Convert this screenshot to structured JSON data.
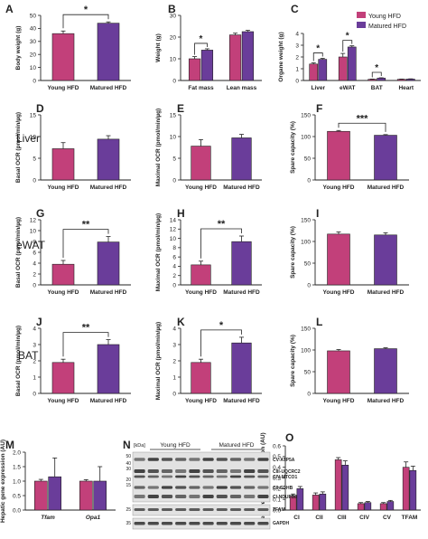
{
  "colors": {
    "young": "#c2407a",
    "matured": "#6a3d9a",
    "axis": "#222222",
    "blot_bg": "#e2e2e2",
    "band": "#3a3a3a"
  },
  "legend": {
    "items": [
      "Young HFD",
      "Matured HFD"
    ]
  },
  "row_labels": {
    "liver": "Liver",
    "ewat": "eWAT",
    "bat": "BAT"
  },
  "chart_data": [
    {
      "id": "A",
      "panel_label": "A",
      "type": "bar",
      "categories": [
        "Young HFD",
        "Matured HFD"
      ],
      "values": [
        36,
        44
      ],
      "errors": [
        2,
        1
      ],
      "ylabel": "Body weight (g)",
      "ylim": [
        0,
        50
      ],
      "yticks": [
        0,
        10,
        20,
        30,
        40,
        50
      ],
      "sig": [
        {
          "from": 0,
          "to": 1,
          "label": "*"
        }
      ]
    },
    {
      "id": "B",
      "panel_label": "B",
      "type": "bar",
      "groups": [
        "Fat mass",
        "Lean mass"
      ],
      "series": [
        {
          "name": "Young HFD",
          "values": [
            10,
            21
          ],
          "errors": [
            1,
            0.8
          ]
        },
        {
          "name": "Matured HFD",
          "values": [
            14,
            22.5
          ],
          "errors": [
            0.6,
            0.6
          ]
        }
      ],
      "ylabel": "Weight (g)",
      "ylim": [
        0,
        30
      ],
      "yticks": [
        0,
        10,
        20,
        30
      ],
      "sig": [
        {
          "group": 0,
          "label": "*"
        }
      ]
    },
    {
      "id": "C",
      "panel_label": "C",
      "type": "bar",
      "groups": [
        "Liver",
        "eWAT",
        "BAT",
        "Heart"
      ],
      "series": [
        {
          "name": "Young HFD",
          "values": [
            1.4,
            2.0,
            0.1,
            0.1
          ],
          "errors": [
            0.1,
            0.3,
            0.02,
            0.02
          ]
        },
        {
          "name": "Matured HFD",
          "values": [
            1.8,
            2.85,
            0.2,
            0.12
          ],
          "errors": [
            0.08,
            0.1,
            0.03,
            0.02
          ]
        }
      ],
      "ylabel": "Organe weight (g)",
      "ylim": [
        0,
        4
      ],
      "yticks": [
        0,
        1,
        2,
        3,
        4
      ],
      "sig": [
        {
          "group": 0,
          "label": "*"
        },
        {
          "group": 1,
          "label": "*"
        },
        {
          "group": 2,
          "label": "*"
        }
      ],
      "legend": "top-right"
    },
    {
      "id": "D",
      "panel_label": "D",
      "type": "bar",
      "categories": [
        "Young HFD",
        "Matured HFD"
      ],
      "values": [
        7.2,
        9.4
      ],
      "errors": [
        1.4,
        0.8
      ],
      "ylabel": "Basal OCR (pmol/min/µg)",
      "ylim": [
        0,
        15
      ],
      "yticks": [
        0,
        5,
        10,
        15
      ],
      "sig": []
    },
    {
      "id": "E",
      "panel_label": "E",
      "type": "bar",
      "categories": [
        "Young HFD",
        "Matured HFD"
      ],
      "values": [
        7.8,
        9.7
      ],
      "errors": [
        1.5,
        0.8
      ],
      "ylabel": "Maximal OCR (pmol/min/µg)",
      "ylim": [
        0,
        15
      ],
      "yticks": [
        0,
        5,
        10,
        15
      ],
      "sig": []
    },
    {
      "id": "F",
      "panel_label": "F",
      "type": "bar",
      "categories": [
        "Young HFD",
        "Matured HFD"
      ],
      "values": [
        112,
        103
      ],
      "errors": [
        2,
        1.5
      ],
      "ylabel": "Spare capacity (%)",
      "ylim": [
        0,
        150
      ],
      "yticks": [
        0,
        50,
        100,
        150
      ],
      "sig": [
        {
          "from": 0,
          "to": 1,
          "label": "***"
        }
      ]
    },
    {
      "id": "G",
      "panel_label": "G",
      "type": "bar",
      "categories": [
        "Young HFD",
        "Matured HFD"
      ],
      "values": [
        3.8,
        7.9
      ],
      "errors": [
        0.7,
        1.0
      ],
      "ylabel": "Basal OCR (pmol/min/µg)",
      "ylim": [
        0,
        12
      ],
      "yticks": [
        0,
        2,
        4,
        6,
        8,
        10,
        12
      ],
      "sig": [
        {
          "from": 0,
          "to": 1,
          "label": "**"
        }
      ]
    },
    {
      "id": "H",
      "panel_label": "H",
      "type": "bar",
      "categories": [
        "Young HFD",
        "Matured HFD"
      ],
      "values": [
        4.3,
        9.3
      ],
      "errors": [
        0.8,
        1.2
      ],
      "ylabel": "Maximal OCR (pmol/min/µg)",
      "ylim": [
        0,
        14
      ],
      "yticks": [
        0,
        2,
        4,
        6,
        8,
        10,
        12,
        14
      ],
      "sig": [
        {
          "from": 0,
          "to": 1,
          "label": "**"
        }
      ]
    },
    {
      "id": "I",
      "panel_label": "I",
      "type": "bar",
      "categories": [
        "Young HFD",
        "Matured HFD"
      ],
      "values": [
        117,
        115
      ],
      "errors": [
        5,
        5
      ],
      "ylabel": "Spare capacity (%)",
      "ylim": [
        0,
        150
      ],
      "yticks": [
        0,
        50,
        100,
        150
      ],
      "sig": []
    },
    {
      "id": "J",
      "panel_label": "J",
      "type": "bar",
      "categories": [
        "Young HFD",
        "Matured HFD"
      ],
      "values": [
        1.9,
        3.0
      ],
      "errors": [
        0.2,
        0.3
      ],
      "ylabel": "Basal OCR (pmol/min/µg)",
      "ylim": [
        0,
        4
      ],
      "yticks": [
        0,
        1,
        2,
        3,
        4
      ],
      "sig": [
        {
          "from": 0,
          "to": 1,
          "label": "**"
        }
      ]
    },
    {
      "id": "K",
      "panel_label": "K",
      "type": "bar",
      "categories": [
        "Young HFD",
        "Matured HFD"
      ],
      "values": [
        1.9,
        3.1
      ],
      "errors": [
        0.2,
        0.35
      ],
      "ylabel": "Maximal OCR (pmol/min/µg)",
      "ylim": [
        0,
        4
      ],
      "yticks": [
        0,
        1,
        2,
        3,
        4
      ],
      "sig": [
        {
          "from": 0,
          "to": 1,
          "label": "*"
        }
      ]
    },
    {
      "id": "L",
      "panel_label": "L",
      "type": "bar",
      "categories": [
        "Young HFD",
        "Matured HFD"
      ],
      "values": [
        98,
        103
      ],
      "errors": [
        3,
        2
      ],
      "ylabel": "Spare capacity (%)",
      "ylim": [
        0,
        150
      ],
      "yticks": [
        0,
        50,
        100,
        150
      ],
      "sig": []
    },
    {
      "id": "M",
      "panel_label": "M",
      "type": "bar",
      "groups": [
        "Tfam",
        "Opa1"
      ],
      "series": [
        {
          "name": "Young HFD",
          "values": [
            1.0,
            1.0
          ],
          "errors": [
            0.06,
            0.05
          ]
        },
        {
          "name": "Matured HFD",
          "values": [
            1.15,
            1.0
          ],
          "errors": [
            0.65,
            0.5
          ]
        }
      ],
      "ylabel": "Hepatic gene expression (AU)",
      "ylim": [
        0,
        2.0
      ],
      "yticks": [
        0,
        0.5,
        1.0,
        1.5,
        2.0
      ],
      "ytick_labels": [
        "0.0",
        "0.5",
        "1.0",
        "1.5",
        "2.0"
      ],
      "group_label_style": "italic",
      "sig": []
    },
    {
      "id": "O",
      "panel_label": "O",
      "type": "bar",
      "groups": [
        "CI",
        "CII",
        "CIII",
        "CIV",
        "CV",
        "TFAM"
      ],
      "series": [
        {
          "name": "Young HFD",
          "values": [
            0.13,
            0.14,
            0.47,
            0.06,
            0.06,
            0.4
          ],
          "errors": [
            0.02,
            0.02,
            0.02,
            0.01,
            0.01,
            0.05
          ]
        },
        {
          "name": "Matured HFD",
          "values": [
            0.2,
            0.15,
            0.42,
            0.07,
            0.08,
            0.37
          ],
          "errors": [
            0.02,
            0.02,
            0.04,
            0.01,
            0.01,
            0.04
          ]
        }
      ],
      "ylabel": "Relative protein expression (AU)",
      "ylim": [
        0,
        0.6
      ],
      "yticks": [
        0,
        0.1,
        0.2,
        0.3,
        0.4,
        0.5,
        0.6
      ],
      "ytick_labels": [
        "0.0",
        "0.1",
        "0.2",
        "0.3",
        "0.4",
        "0.5",
        "0.6"
      ],
      "sig": []
    }
  ],
  "blot": {
    "panel_label": "N",
    "kda_label": "[kDa]",
    "group_labels": [
      "Young HFD",
      "Matured HFD"
    ],
    "markers": [
      "50",
      "40",
      "30",
      "20",
      "15",
      "25",
      "35"
    ],
    "band_labels": [
      "CV-ATP5A",
      "CIII-UQCRC2",
      "CIV-MTCO1",
      "CII-SDHB",
      "CI-NDUFB8",
      "TFAM",
      "GAPDH"
    ]
  }
}
